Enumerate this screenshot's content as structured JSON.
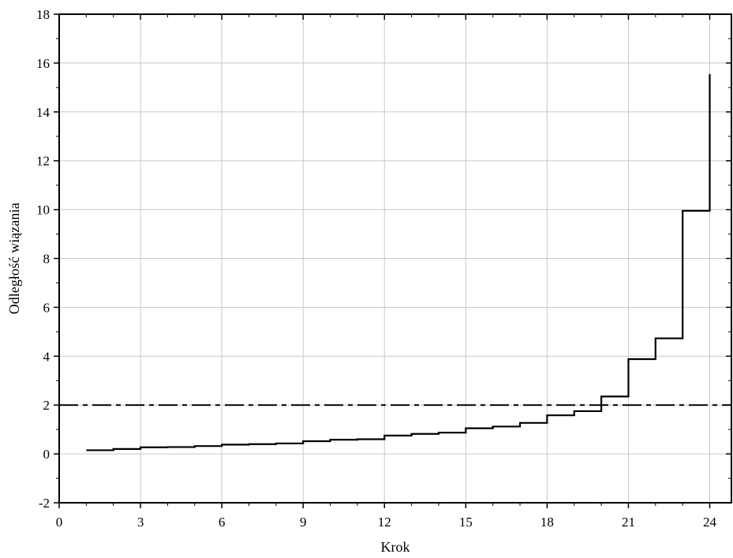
{
  "chart_data": {
    "type": "line",
    "step": true,
    "xlabel": "Krok",
    "ylabel": "Odległość wiązania",
    "xlim": [
      0,
      24.8
    ],
    "ylim": [
      -2,
      18
    ],
    "xticks": [
      0,
      3,
      6,
      9,
      12,
      15,
      18,
      21,
      24
    ],
    "yticks": [
      -2,
      0,
      2,
      4,
      6,
      8,
      10,
      12,
      14,
      16,
      18
    ],
    "grid": true,
    "series": [
      {
        "x": [
          1,
          2,
          3,
          4,
          5,
          6,
          7,
          8,
          9,
          10,
          11,
          12,
          13,
          14,
          15,
          16,
          17,
          18,
          19,
          20,
          21,
          22,
          23,
          24
        ],
        "values": [
          0.15,
          0.2,
          0.27,
          0.28,
          0.32,
          0.38,
          0.4,
          0.43,
          0.52,
          0.58,
          0.6,
          0.75,
          0.82,
          0.87,
          1.05,
          1.12,
          1.27,
          1.58,
          1.75,
          2.35,
          3.88,
          4.73,
          9.95,
          15.55
        ]
      }
    ],
    "reference_line": {
      "y": 2.0
    }
  }
}
